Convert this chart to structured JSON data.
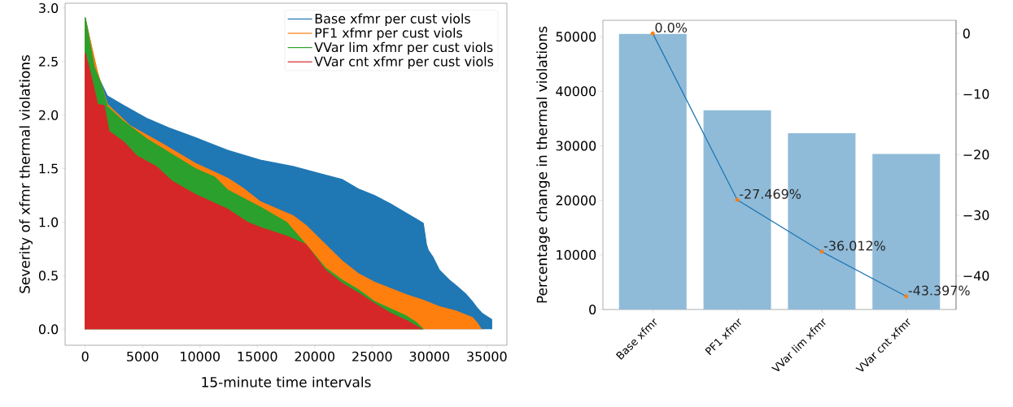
{
  "chart_data": [
    {
      "type": "area",
      "xlabel": "15-minute time intervals",
      "ylabel": "Severity of xfmr thermal violations",
      "xlim": [
        -1750,
        36750
      ],
      "ylim": [
        -0.15,
        3.045
      ],
      "xticks": [
        0,
        5000,
        10000,
        15000,
        20000,
        25000,
        30000,
        35000
      ],
      "yticks": [
        {
          "value": 0,
          "label": "0.0"
        },
        {
          "value": 0.5,
          "label": "0.5"
        },
        {
          "value": 1,
          "label": "1.0"
        },
        {
          "value": 1.5,
          "label": "1.5"
        },
        {
          "value": 2,
          "label": "2.0"
        },
        {
          "value": 2.5,
          "label": "2.5"
        },
        {
          "value": 3,
          "label": "3.0"
        }
      ],
      "legend": "top right",
      "series": [
        {
          "name": "Base xfmr per cust viols",
          "color": "#1f77b4",
          "x": [
            0,
            1080,
            1930,
            3350,
            5340,
            7320,
            9590,
            12430,
            15270,
            18110,
            20950,
            22370,
            23790,
            25200,
            26620,
            28040,
            29460,
            29740,
            29890,
            30320,
            30880,
            31730,
            32300,
            33150,
            33720,
            34150,
            34570,
            35420
          ],
          "values": [
            2.91,
            2.37,
            2.18,
            2.09,
            1.97,
            1.88,
            1.79,
            1.67,
            1.58,
            1.52,
            1.44,
            1.4,
            1.31,
            1.25,
            1.17,
            1.08,
            0.99,
            0.79,
            0.74,
            0.67,
            0.55,
            0.46,
            0.41,
            0.33,
            0.26,
            0.2,
            0.15,
            0.09
          ]
        },
        {
          "name": "PF1 xfmr per cust viols",
          "color": "#ff7f0e",
          "x": [
            0,
            1080,
            1930,
            3920,
            6760,
            9590,
            12430,
            13850,
            15270,
            18110,
            19240,
            20950,
            22370,
            23790,
            25200,
            26620,
            28040,
            29460,
            30880,
            32300,
            33720,
            34150,
            34520
          ],
          "values": [
            2.9,
            2.4,
            2.1,
            1.9,
            1.73,
            1.55,
            1.41,
            1.31,
            1.19,
            1.06,
            0.97,
            0.79,
            0.64,
            0.52,
            0.44,
            0.38,
            0.32,
            0.27,
            0.21,
            0.17,
            0.11,
            0.06,
            0
          ]
        },
        {
          "name": "VVar lim xfmr per cust viols",
          "color": "#2ca02c",
          "x": [
            0,
            790,
            1360,
            1930,
            3350,
            5340,
            7320,
            9590,
            11290,
            12430,
            15270,
            17540,
            19240,
            20950,
            22370,
            23790,
            25200,
            26620,
            28040,
            28890,
            29460
          ],
          "values": [
            2.91,
            2.45,
            2.3,
            2.08,
            1.94,
            1.78,
            1.65,
            1.5,
            1.42,
            1.3,
            1.14,
            1.0,
            0.79,
            0.57,
            0.46,
            0.37,
            0.26,
            0.19,
            0.12,
            0.06,
            0
          ]
        },
        {
          "name": "VVar cnt xfmr per cust viols",
          "color": "#d62728",
          "x": [
            0,
            510,
            1080,
            1650,
            2070,
            3350,
            4480,
            6190,
            7610,
            9590,
            12430,
            14130,
            15270,
            17540,
            19240,
            20950,
            22370,
            23790,
            25200,
            26620,
            28040,
            29320
          ],
          "values": [
            2.58,
            2.37,
            2.1,
            2.09,
            1.85,
            1.75,
            1.62,
            1.52,
            1.38,
            1.26,
            1.12,
            1.0,
            0.95,
            0.87,
            0.79,
            0.55,
            0.43,
            0.34,
            0.24,
            0.15,
            0.08,
            0
          ]
        }
      ]
    },
    {
      "type": "bar",
      "ylabel": "Percentage change in thermal violations",
      "categories": [
        "Base xfmr",
        "PF1 xfmr",
        "VVar lim xfmr",
        "VVar cnt xfmr"
      ],
      "ylim": [
        0,
        53000
      ],
      "yticks": [
        0,
        10000,
        20000,
        30000,
        40000,
        50000
      ],
      "y2lim": [
        -45.57,
        2.17
      ],
      "y2ticks": [
        {
          "value": 0,
          "label": "0"
        },
        {
          "value": -10,
          "label": "−10"
        },
        {
          "value": -20,
          "label": "−20"
        },
        {
          "value": -30,
          "label": "−30"
        },
        {
          "value": -40,
          "label": "−40"
        }
      ],
      "marker": "circle",
      "series": [
        {
          "color": "#8fbbd9",
          "values": [
            50500,
            36500,
            32300,
            28500
          ]
        },
        {
          "type": "line",
          "axis": "y2",
          "color": "#1f77b4",
          "colors": [
            "#ff7f0e",
            "#ff7f0e",
            "#ff7f0e",
            "#ff7f0e"
          ],
          "values": [
            0,
            -27.469,
            -36.012,
            -43.397
          ],
          "value_labels": [
            "0.0%",
            "-27.469%",
            "-36.012%",
            "-43.397%"
          ]
        }
      ]
    }
  ]
}
